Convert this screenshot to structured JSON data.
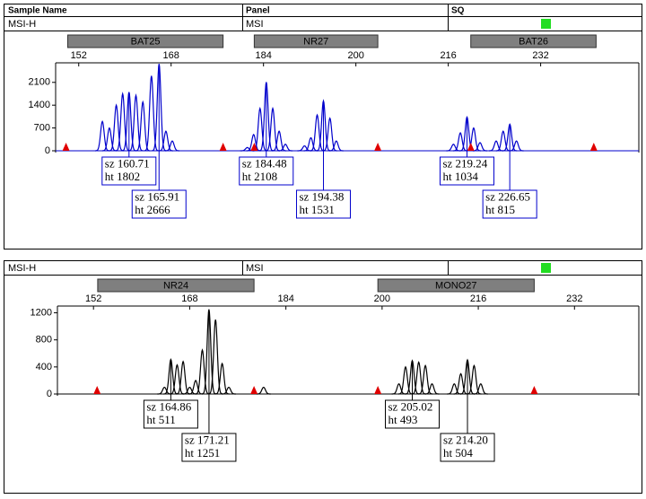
{
  "columns": [
    "Sample Name",
    "Panel",
    "SQ"
  ],
  "chart_data": [
    {
      "type": "electropherogram",
      "sample_name": "MSI-H",
      "panel": "MSI",
      "color": "#0000cc",
      "xlim": [
        148,
        249
      ],
      "xticks": [
        152,
        168,
        184,
        200,
        216,
        232
      ],
      "ylim": [
        0,
        2700
      ],
      "yticks": [
        0,
        700,
        1400,
        2100
      ],
      "bins": [
        {
          "name": "BAT25",
          "range": [
            150.1,
            177
          ]
        },
        {
          "name": "NR27",
          "range": [
            182.4,
            203.8
          ]
        },
        {
          "name": "BAT26",
          "range": [
            219.9,
            241.6
          ]
        }
      ],
      "size_standard": [
        149.8,
        177.0,
        182.4,
        203.8,
        219.9,
        241.2
      ],
      "peaks": {
        "x": [
          156.1,
          157.3,
          158.5,
          159.6,
          160.71,
          161.9,
          163.1,
          164.6,
          165.91,
          167.1,
          168.2,
          181.2,
          182.3,
          183.4,
          184.48,
          185.6,
          186.7,
          187.8,
          191.1,
          192.2,
          193.3,
          194.38,
          195.5,
          196.6,
          216.9,
          218.1,
          219.24,
          220.4,
          221.5,
          224.3,
          225.5,
          226.65,
          227.8
        ],
        "values": [
          900,
          700,
          1400,
          1750,
          1802,
          1700,
          1500,
          2300,
          2666,
          600,
          300,
          100,
          500,
          1300,
          2108,
          1300,
          600,
          200,
          150,
          400,
          1100,
          1531,
          1000,
          300,
          200,
          550,
          1034,
          700,
          250,
          300,
          600,
          815,
          300
        ]
      },
      "annotations": [
        {
          "size": 160.71,
          "size_label": "sz 160.71",
          "height": 1802,
          "height_label": "ht 1802"
        },
        {
          "size": 165.91,
          "size_label": "sz 165.91",
          "height": 2666,
          "height_label": "ht 2666"
        },
        {
          "size": 184.48,
          "size_label": "sz 184.48",
          "height": 2108,
          "height_label": "ht 2108"
        },
        {
          "size": 194.38,
          "size_label": "sz 194.38",
          "height": 1531,
          "height_label": "ht 1531"
        },
        {
          "size": 219.24,
          "size_label": "sz 219.24",
          "height": 1034,
          "height_label": "ht 1034"
        },
        {
          "size": 226.65,
          "size_label": "sz 226.65",
          "height": 815,
          "height_label": "ht 815"
        }
      ]
    },
    {
      "type": "electropherogram",
      "sample_name": "MSI-H",
      "panel": "MSI",
      "color": "#000000",
      "xlim": [
        146,
        242.7
      ],
      "xticks": [
        152,
        168,
        184,
        200,
        216,
        232
      ],
      "ylim": [
        0,
        1300
      ],
      "yticks": [
        0,
        400,
        800,
        1200
      ],
      "bins": [
        {
          "name": "NR24",
          "range": [
            152.7,
            178.7
          ]
        },
        {
          "name": "MONO27",
          "range": [
            199.3,
            225.3
          ]
        }
      ],
      "size_standard": [
        152.6,
        178.7,
        199.3,
        225.3
      ],
      "peaks": {
        "x": [
          163.8,
          164.86,
          165.9,
          166.9,
          168.0,
          169.0,
          170.1,
          171.21,
          172.3,
          173.4,
          174.5,
          180.3,
          202.8,
          203.9,
          205.02,
          206.1,
          207.2,
          208.3,
          212.0,
          213.1,
          214.2,
          215.3,
          216.4
        ],
        "values": [
          100,
          511,
          430,
          480,
          100,
          200,
          650,
          1251,
          1100,
          450,
          100,
          100,
          150,
          400,
          493,
          470,
          420,
          150,
          150,
          300,
          504,
          420,
          150
        ]
      },
      "annotations": [
        {
          "size": 164.86,
          "size_label": "sz 164.86",
          "height": 511,
          "height_label": "ht 511"
        },
        {
          "size": 171.21,
          "size_label": "sz 171.21",
          "height": 1251,
          "height_label": "ht 1251"
        },
        {
          "size": 205.02,
          "size_label": "sz 205.02",
          "height": 493,
          "height_label": "ht 493"
        },
        {
          "size": 214.2,
          "size_label": "sz 214.20",
          "height": 504,
          "height_label": "ht 504"
        }
      ]
    }
  ]
}
